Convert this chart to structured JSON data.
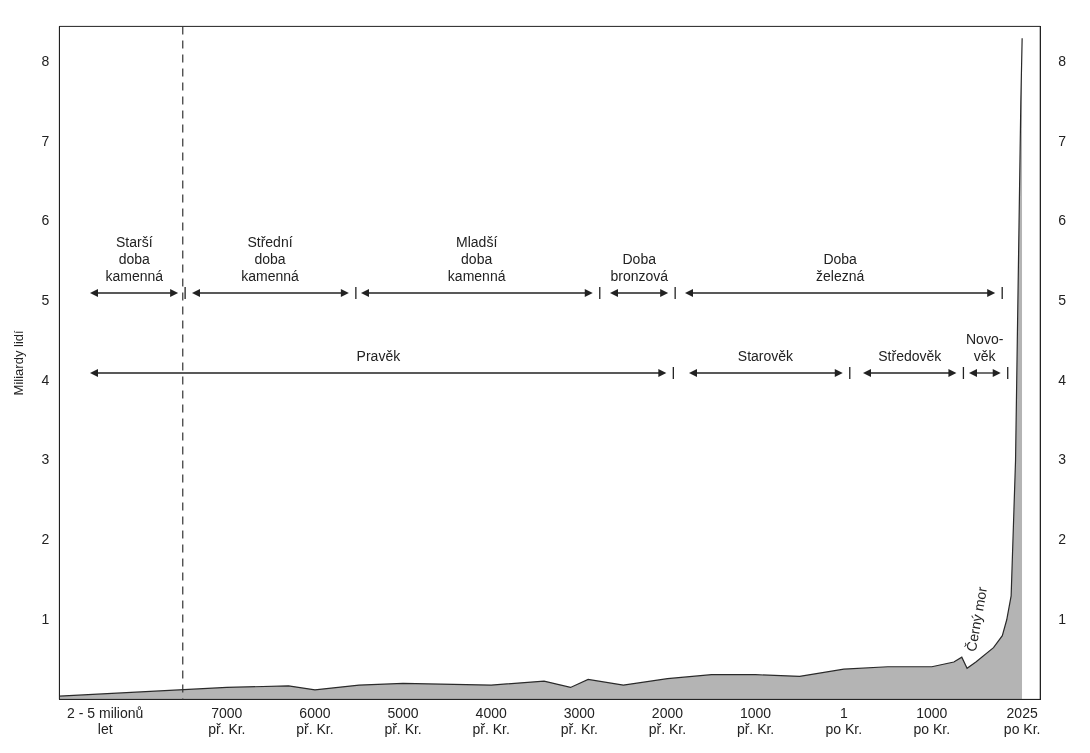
{
  "chart_data": {
    "type": "area",
    "ylabel": "Miliardy lidí",
    "x": [
      -8900,
      -7000,
      -6300,
      -6000,
      -5500,
      -5000,
      -4000,
      -3400,
      -3100,
      -2900,
      -2500,
      -2000,
      -1500,
      -1000,
      -500,
      1,
      500,
      1000,
      1250,
      1340,
      1400,
      1500,
      1700,
      1800,
      1850,
      1900,
      1950,
      1970,
      1990,
      2010,
      2025
    ],
    "series": [
      {
        "color": "#b4b4b4",
        "values": [
          0.04,
          0.15,
          0.17,
          0.12,
          0.18,
          0.2,
          0.18,
          0.23,
          0.15,
          0.25,
          0.18,
          0.26,
          0.31,
          0.31,
          0.29,
          0.38,
          0.41,
          0.41,
          0.47,
          0.53,
          0.39,
          0.47,
          0.65,
          0.8,
          1.0,
          1.3,
          3.0,
          4.5,
          6.0,
          7.5,
          8.3
        ]
      }
    ],
    "xlim": [
      -8900,
      2230
    ],
    "xticks": [
      {
        "value": -8380,
        "label": "2 - 5 milionů\nlet"
      },
      {
        "value": -7000,
        "label": "7000\npř. Kr."
      },
      {
        "value": -6000,
        "label": "6000\npř. Kr."
      },
      {
        "value": -5000,
        "label": "5000\npř. Kr."
      },
      {
        "value": -4000,
        "label": "4000\npř. Kr."
      },
      {
        "value": -3000,
        "label": "3000\npř. Kr."
      },
      {
        "value": -2000,
        "label": "2000\npř. Kr."
      },
      {
        "value": -1000,
        "label": "1000\npř. Kr."
      },
      {
        "value": 1,
        "label": "1\npo Kr."
      },
      {
        "value": 1000,
        "label": "1000\npo Kr."
      },
      {
        "value": 2025,
        "label": "2025\npo Kr."
      }
    ],
    "ylim": [
      0,
      8.45
    ],
    "yticks": [
      1,
      2,
      3,
      4,
      5,
      6,
      7,
      8
    ],
    "y2lim": [
      0,
      8.45
    ],
    "y2ticks": [
      1,
      2,
      3,
      4,
      5,
      6,
      7,
      8
    ],
    "legend": false,
    "grid": false,
    "ref_lines": [
      {
        "axis": "x",
        "value": -7500,
        "line_style": "dashed",
        "color": "#333333"
      }
    ],
    "annotations": [
      "Starší\ndoba\nkamenná",
      "Střední\ndoba\nkamenná",
      "Mladší\ndoba\nkamenná",
      "Doba\nbronzová",
      "Doba\nželezná",
      "Pravěk",
      "Starověk",
      "Středověk",
      "Novo-\nvěk",
      "Černý mor"
    ]
  }
}
